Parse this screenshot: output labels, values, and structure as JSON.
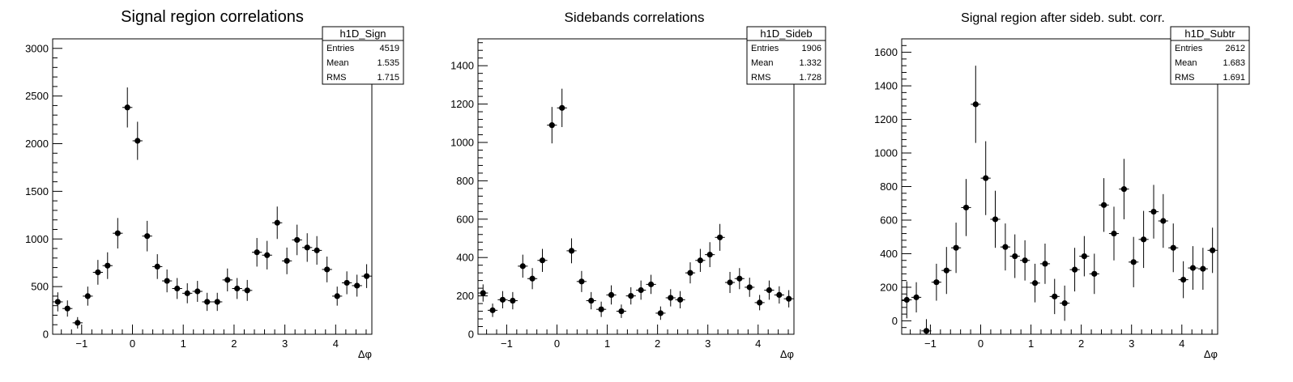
{
  "chart_data": [
    {
      "type": "scatter",
      "title": "Signal region correlations",
      "xlabel": "Δφ",
      "ylabel": "",
      "xlim": [
        -1.5708,
        4.7124
      ],
      "ylim": [
        0,
        3100
      ],
      "xticks": [
        -1,
        0,
        1,
        2,
        3,
        4
      ],
      "yticks": [
        0,
        500,
        1000,
        1500,
        2000,
        2500,
        3000
      ],
      "grid": false,
      "stats": {
        "name": "h1D_Sign",
        "rows": [
          {
            "label": "Entries",
            "value": "4519"
          },
          {
            "label": "Mean",
            "value": "1.535"
          },
          {
            "label": "RMS",
            "value": "1.715"
          }
        ]
      },
      "series": [
        {
          "x": [
            -1.47,
            -1.28,
            -1.08,
            -0.88,
            -0.68,
            -0.49,
            -0.29,
            -0.1,
            0.1,
            0.29,
            0.49,
            0.68,
            0.88,
            1.08,
            1.28,
            1.47,
            1.67,
            1.87,
            2.06,
            2.26,
            2.45,
            2.65,
            2.85,
            3.04,
            3.24,
            3.44,
            3.63,
            3.83,
            4.03,
            4.22,
            4.42,
            4.61
          ],
          "y": [
            340,
            270,
            120,
            400,
            650,
            720,
            1060,
            2380,
            2030,
            1030,
            710,
            560,
            480,
            430,
            450,
            340,
            340,
            570,
            480,
            460,
            860,
            830,
            1170,
            770,
            990,
            910,
            880,
            680,
            400,
            540,
            510,
            610
          ],
          "err": [
            100,
            85,
            60,
            100,
            130,
            140,
            160,
            210,
            200,
            160,
            130,
            120,
            110,
            105,
            110,
            95,
            95,
            120,
            110,
            110,
            150,
            150,
            170,
            140,
            160,
            150,
            150,
            135,
            100,
            120,
            115,
            125
          ]
        }
      ]
    },
    {
      "type": "scatter",
      "title": "Sidebands correlations",
      "xlabel": "Δφ",
      "ylabel": "",
      "xlim": [
        -1.5708,
        4.7124
      ],
      "ylim": [
        0,
        1540
      ],
      "xticks": [
        -1,
        0,
        1,
        2,
        3,
        4
      ],
      "yticks": [
        0,
        200,
        400,
        600,
        800,
        1000,
        1200,
        1400
      ],
      "grid": false,
      "stats": {
        "name": "h1D_Sideb",
        "rows": [
          {
            "label": "Entries",
            "value": "1906"
          },
          {
            "label": "Mean",
            "value": "1.332"
          },
          {
            "label": "RMS",
            "value": "1.728"
          }
        ]
      },
      "series": [
        {
          "x": [
            -1.47,
            -1.28,
            -1.08,
            -0.88,
            -0.68,
            -0.49,
            -0.29,
            -0.1,
            0.1,
            0.29,
            0.49,
            0.68,
            0.88,
            1.08,
            1.28,
            1.47,
            1.67,
            1.87,
            2.06,
            2.26,
            2.45,
            2.65,
            2.85,
            3.04,
            3.24,
            3.44,
            3.63,
            3.83,
            4.03,
            4.22,
            4.42,
            4.61
          ],
          "y": [
            215,
            125,
            180,
            175,
            355,
            290,
            385,
            1090,
            1180,
            435,
            275,
            175,
            130,
            205,
            120,
            200,
            230,
            260,
            110,
            190,
            180,
            320,
            385,
            415,
            505,
            270,
            290,
            245,
            165,
            230,
            205,
            185
          ],
          "err": [
            45,
            35,
            45,
            45,
            60,
            55,
            60,
            95,
            100,
            65,
            55,
            45,
            40,
            50,
            35,
            45,
            50,
            50,
            35,
            45,
            45,
            55,
            60,
            65,
            70,
            55,
            55,
            50,
            40,
            50,
            45,
            45
          ]
        }
      ]
    },
    {
      "type": "scatter",
      "title": "Signal region after sideb. subt. corr.",
      "xlabel": "Δφ",
      "ylabel": "",
      "xlim": [
        -1.5708,
        4.7124
      ],
      "ylim": [
        -80,
        1680
      ],
      "xticks": [
        -1,
        0,
        1,
        2,
        3,
        4
      ],
      "yticks": [
        0,
        200,
        400,
        600,
        800,
        1000,
        1200,
        1400,
        1600
      ],
      "grid": false,
      "stats": {
        "name": "h1D_Subtr",
        "rows": [
          {
            "label": "Entries",
            "value": "2612"
          },
          {
            "label": "Mean",
            "value": "1.683"
          },
          {
            "label": "RMS",
            "value": "1.691"
          }
        ]
      },
      "series": [
        {
          "x": [
            -1.47,
            -1.28,
            -1.08,
            -0.88,
            -0.68,
            -0.49,
            -0.29,
            -0.1,
            0.1,
            0.29,
            0.49,
            0.68,
            0.88,
            1.08,
            1.28,
            1.47,
            1.67,
            1.87,
            2.06,
            2.26,
            2.45,
            2.65,
            2.85,
            3.04,
            3.24,
            3.44,
            3.63,
            3.83,
            4.03,
            4.22,
            4.42,
            4.61
          ],
          "y": [
            125,
            140,
            -60,
            230,
            300,
            435,
            675,
            1290,
            850,
            605,
            440,
            385,
            360,
            225,
            340,
            145,
            105,
            305,
            385,
            280,
            690,
            520,
            785,
            350,
            485,
            650,
            595,
            435,
            245,
            315,
            310,
            420
          ],
          "err": [
            110,
            90,
            70,
            110,
            140,
            150,
            170,
            230,
            220,
            170,
            140,
            130,
            120,
            115,
            120,
            105,
            105,
            130,
            120,
            120,
            160,
            160,
            180,
            150,
            170,
            160,
            160,
            145,
            110,
            130,
            125,
            135
          ]
        }
      ]
    }
  ]
}
